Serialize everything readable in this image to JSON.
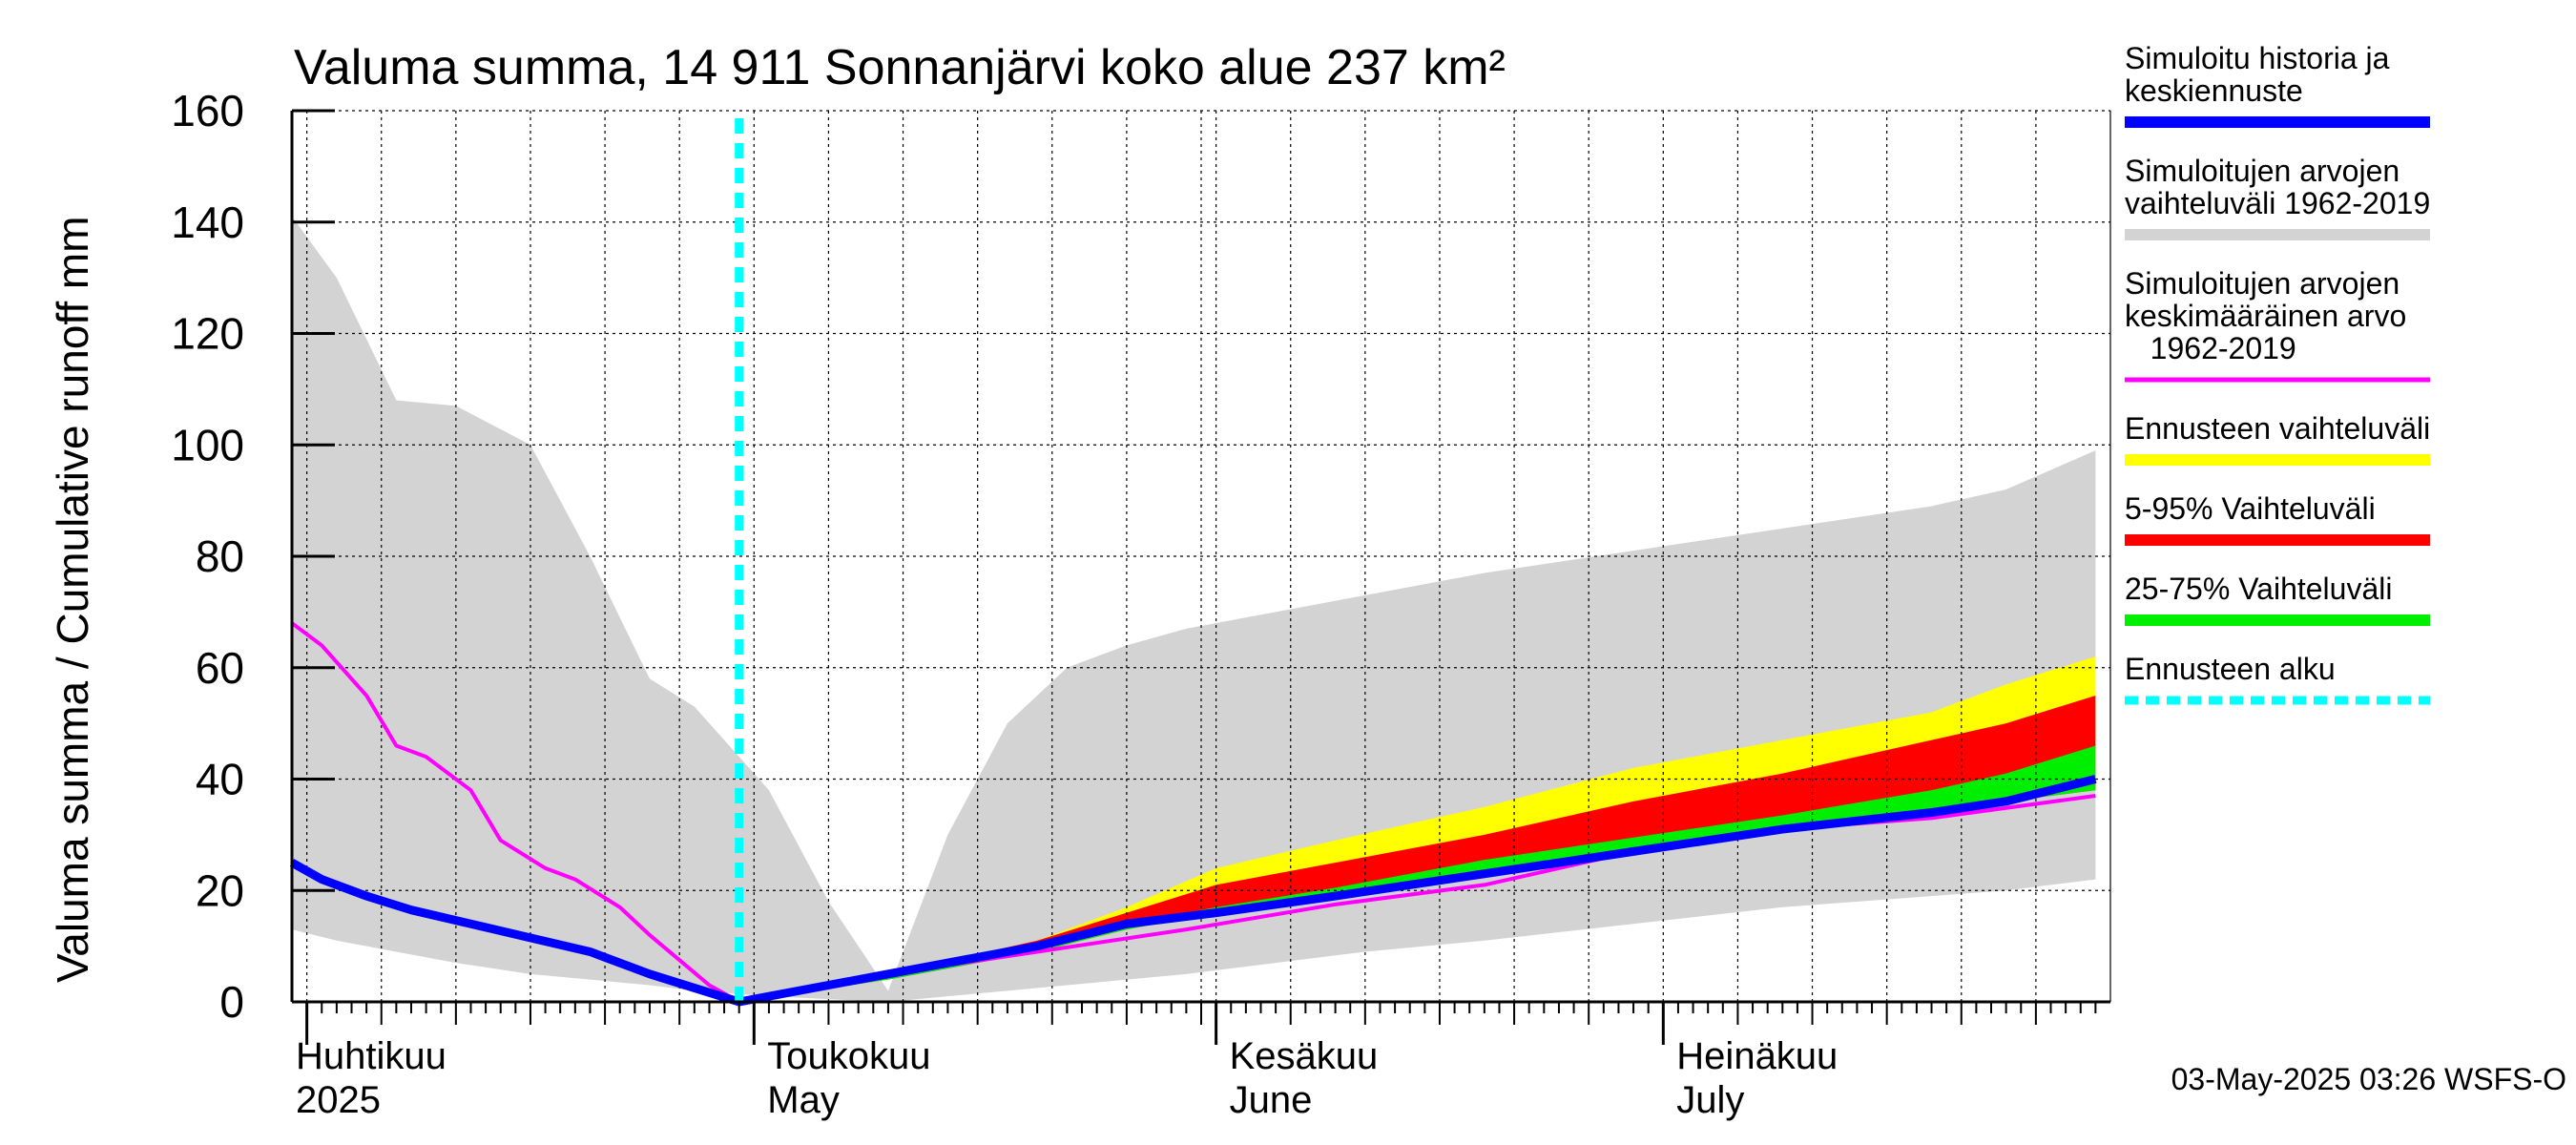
{
  "title": "Valuma summa, 14 911 Sonnanjärvi koko alue 237 km²",
  "ylabel": "Valuma summa / Cumulative runoff    mm",
  "footer": "03-May-2025 03:26 WSFS-O",
  "chart_data": {
    "type": "area",
    "title": "Valuma summa, 14 911 Sonnanjärvi koko alue 237 km²",
    "ylabel": "Valuma summa / Cumulative runoff    mm",
    "xlabel": "",
    "x_unit": "day of year 2025",
    "x_start": "2025-03-31",
    "x_end": "2025-07-31",
    "forecast_start": "2025-04-30",
    "ylim": [
      0,
      160
    ],
    "yticks": [
      0,
      20,
      40,
      60,
      80,
      100,
      120,
      140,
      160
    ],
    "grid": true,
    "months": [
      {
        "fi": "Huhtikuu",
        "en": "2025",
        "date": "2025-04-01"
      },
      {
        "fi": "Toukokuu",
        "en": "May",
        "date": "2025-05-01"
      },
      {
        "fi": "Kesäkuu",
        "en": "June",
        "date": "2025-06-01"
      },
      {
        "fi": "Heinäkuu",
        "en": "July",
        "date": "2025-07-01"
      }
    ],
    "series": [
      {
        "name": "Simuloitujen arvojen vaihteluväli 1962-2019",
        "kind": "band",
        "color": "#d3d3d3",
        "x": [
          0,
          3,
          7,
          11,
          16,
          20,
          24,
          27,
          32,
          36,
          40,
          44,
          48,
          52,
          56,
          60,
          66,
          72,
          80,
          90,
          100,
          110,
          115,
          121
        ],
        "upper": [
          141,
          130,
          108,
          107,
          100,
          80,
          58,
          53,
          38,
          18,
          2,
          30,
          50,
          60,
          64,
          67,
          70,
          73,
          77,
          81,
          85,
          89,
          92,
          99
        ],
        "lower": [
          13,
          11,
          9,
          7,
          5,
          4,
          3,
          2,
          1,
          0.5,
          0,
          1,
          2,
          3,
          4,
          5,
          7,
          9,
          11,
          14,
          17,
          19,
          20,
          22
        ]
      },
      {
        "name": "Ennusteen vaihteluväli",
        "kind": "band",
        "color": "#ffff00",
        "x": [
          30,
          40,
          50,
          56,
          62,
          70,
          80,
          90,
          100,
          110,
          115,
          121
        ],
        "upper": [
          0,
          5,
          11,
          17,
          24,
          29,
          35,
          42,
          47,
          52,
          57,
          62
        ],
        "lower": [
          0,
          4,
          9,
          13,
          16,
          19,
          23,
          27,
          31,
          34,
          36,
          38
        ]
      },
      {
        "name": "5-95% Vaihteluväli",
        "kind": "band",
        "color": "#ff0000",
        "x": [
          30,
          40,
          50,
          56,
          62,
          70,
          80,
          90,
          100,
          110,
          115,
          121
        ],
        "upper": [
          0,
          5,
          11,
          16,
          21,
          25,
          30,
          36,
          41,
          47,
          50,
          55
        ],
        "lower": [
          0,
          4,
          9,
          13,
          16,
          19,
          23,
          27,
          31,
          34,
          36,
          38
        ]
      },
      {
        "name": "25-75% Vaihteluväli",
        "kind": "band",
        "color": "#00ee00",
        "x": [
          30,
          40,
          50,
          56,
          62,
          70,
          80,
          90,
          100,
          110,
          115,
          121
        ],
        "upper": [
          0,
          4.5,
          10,
          14,
          17,
          20.5,
          25.5,
          29.5,
          33.5,
          38,
          41,
          46
        ],
        "lower": [
          0,
          4,
          9,
          13,
          16,
          19,
          23,
          27,
          31,
          34,
          36,
          38
        ]
      },
      {
        "name": "Simuloitujen arvojen keskimääräinen arvo 1962-2019",
        "kind": "line",
        "color": "#ff00ff",
        "x": [
          0,
          2,
          3,
          5,
          7,
          9,
          12,
          14,
          17,
          19,
          22,
          24,
          28,
          30,
          40,
          50,
          60,
          70,
          80,
          85,
          90,
          100,
          110,
          121
        ],
        "y": [
          68,
          64,
          61,
          55,
          46,
          44,
          38,
          29,
          24,
          22,
          17,
          12,
          3,
          0,
          5,
          9,
          13,
          17.5,
          21,
          24,
          27,
          31,
          33,
          37
        ]
      },
      {
        "name": "Simuloitu historia ja keskiennuste",
        "kind": "line",
        "color": "#0000ff",
        "x": [
          0,
          2,
          5,
          8,
          12,
          16,
          20,
          24,
          27,
          30,
          40,
          50,
          56,
          62,
          70,
          80,
          90,
          100,
          110,
          115,
          121
        ],
        "y": [
          25,
          22,
          19,
          16.5,
          14,
          11.5,
          9,
          5,
          2.5,
          0,
          5,
          10,
          14,
          16,
          19,
          23,
          27,
          31,
          34,
          36,
          40
        ]
      },
      {
        "name": "Ennusteen alku",
        "kind": "vline",
        "color": "#00ffff",
        "x": 30
      }
    ]
  },
  "legend": [
    {
      "label": "Simuloitu historia ja\nkeskiennuste",
      "color": "#0000ff",
      "style": "solid"
    },
    {
      "label": "Simuloitujen arvojen\nvaihteluväli 1962-2019",
      "color": "#d3d3d3",
      "style": "solid"
    },
    {
      "label": "Simuloitujen arvojen\nkeskimääräinen arvo\n   1962-2019",
      "color": "#ff00ff",
      "style": "thin"
    },
    {
      "label": "Ennusteen vaihteluväli",
      "color": "#ffff00",
      "style": "solid"
    },
    {
      "label": "5-95% Vaihteluväli",
      "color": "#ff0000",
      "style": "solid"
    },
    {
      "label": "25-75% Vaihteluväli",
      "color": "#00ee00",
      "style": "solid"
    },
    {
      "label": "Ennusteen alku",
      "color": "#00ffff",
      "style": "dashed"
    }
  ]
}
